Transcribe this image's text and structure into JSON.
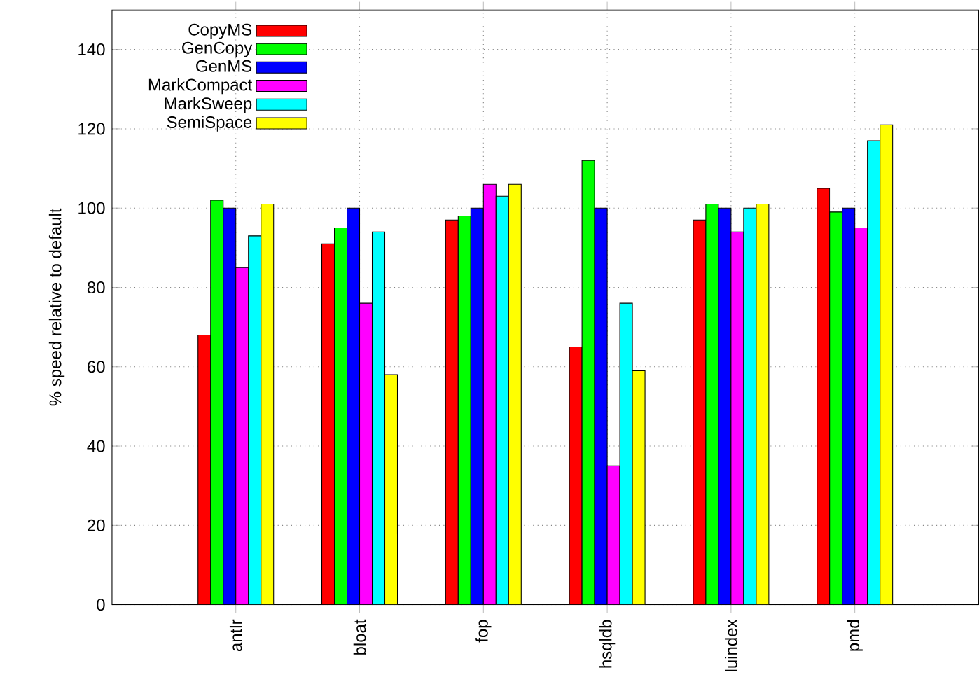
{
  "chart_data": {
    "type": "bar",
    "ylabel": "% speed relative to default",
    "categories": [
      "antlr",
      "bloat",
      "fop",
      "hsqldb",
      "luindex",
      "pmd"
    ],
    "series": [
      {
        "name": "CopyMS",
        "color": "#ff0000",
        "values": [
          68,
          91,
          97,
          65,
          97,
          105
        ]
      },
      {
        "name": "GenCopy",
        "color": "#00ff00",
        "values": [
          102,
          95,
          98,
          112,
          101,
          99
        ]
      },
      {
        "name": "GenMS",
        "color": "#0000ff",
        "values": [
          100,
          100,
          100,
          100,
          100,
          100
        ]
      },
      {
        "name": "MarkCompact",
        "color": "#ff00ff",
        "values": [
          85,
          76,
          106,
          35,
          94,
          95
        ]
      },
      {
        "name": "MarkSweep",
        "color": "#00ffff",
        "values": [
          93,
          94,
          103,
          76,
          100,
          117
        ]
      },
      {
        "name": "SemiSpace",
        "color": "#ffff00",
        "values": [
          101,
          58,
          106,
          59,
          101,
          121
        ]
      }
    ],
    "ylim": [
      0,
      150
    ],
    "yticks": [
      0,
      20,
      40,
      60,
      80,
      100,
      120,
      140
    ],
    "grid": true,
    "legend": "top left"
  }
}
